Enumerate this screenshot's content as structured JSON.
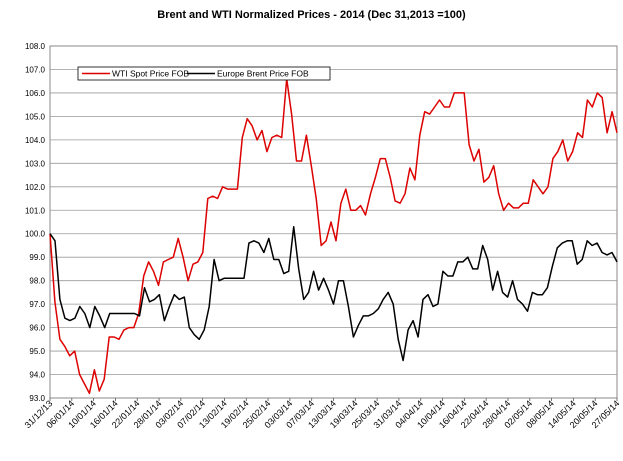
{
  "chart_data": {
    "type": "line",
    "title": "Brent and WTI Normalized Prices  - 2014 (Dec 31,2013 =100)",
    "xlabel": "",
    "ylabel": "",
    "ylim": [
      93,
      108
    ],
    "yticks": [
      "93.0",
      "94.0",
      "95.0",
      "96.0",
      "97.0",
      "98.0",
      "99.0",
      "100.0",
      "101.0",
      "102.0",
      "103.0",
      "104.0",
      "105.0",
      "106.0",
      "107.0",
      "108.0"
    ],
    "x_tick_labels": [
      "31/12/13",
      "06/01/14",
      "10/01/14",
      "16/01/14",
      "22/01/14",
      "28/01/14",
      "03/02/14",
      "07/02/14",
      "13/02/14",
      "19/02/14",
      "25/02/14",
      "03/03/14",
      "07/03/14",
      "13/03/14",
      "19/03/14",
      "25/03/14",
      "31/03/14",
      "04/04/14",
      "10/04/14",
      "16/04/14",
      "22/04/14",
      "28/04/14",
      "02/05/14",
      "08/05/14",
      "14/05/14",
      "20/05/14",
      "27/05/14"
    ],
    "grid": true,
    "legend_position": "top-left",
    "series": [
      {
        "name": "WTI Spot Price FOB",
        "color": "#dd0000",
        "values": [
          100.0,
          97.1,
          95.5,
          95.2,
          94.8,
          95.0,
          94.0,
          93.6,
          93.2,
          94.2,
          93.3,
          93.8,
          95.6,
          95.6,
          95.5,
          95.9,
          96.0,
          96.0,
          96.6,
          98.2,
          98.8,
          98.4,
          97.8,
          98.8,
          98.9,
          99.0,
          99.8,
          99.0,
          98.0,
          98.7,
          98.8,
          99.2,
          101.5,
          101.6,
          101.5,
          102.0,
          101.9,
          101.9,
          101.9,
          104.1,
          104.9,
          104.6,
          104.0,
          104.4,
          103.5,
          104.1,
          104.2,
          104.1,
          106.6,
          105.1,
          103.1,
          103.1,
          104.2,
          102.9,
          101.5,
          99.5,
          99.7,
          100.5,
          99.7,
          101.3,
          101.9,
          101.0,
          101.0,
          101.2,
          100.8,
          101.7,
          102.4,
          103.2,
          103.2,
          102.4,
          101.4,
          101.3,
          101.7,
          102.8,
          102.3,
          104.2,
          105.2,
          105.1,
          105.4,
          105.7,
          105.4,
          105.4,
          106.0,
          106.0,
          106.0,
          103.8,
          103.1,
          103.6,
          102.2,
          102.4,
          102.9,
          101.7,
          101.0,
          101.3,
          101.1,
          101.1,
          101.3,
          101.3,
          102.3,
          102.0,
          101.7,
          102.0,
          103.2,
          103.5,
          104.0,
          103.1,
          103.5,
          104.3,
          104.1,
          105.7,
          105.4,
          106.0,
          105.8,
          104.3,
          105.2,
          104.3
        ]
      },
      {
        "name": "Europe Brent Price FOB",
        "color": "#000000",
        "values": [
          100.0,
          99.7,
          97.2,
          96.4,
          96.3,
          96.4,
          96.9,
          96.6,
          96.0,
          96.9,
          96.5,
          96.0,
          96.6,
          96.6,
          96.6,
          96.6,
          96.6,
          96.6,
          96.5,
          97.7,
          97.1,
          97.2,
          97.4,
          96.3,
          96.9,
          97.4,
          97.2,
          97.3,
          96.0,
          95.7,
          95.5,
          95.9,
          96.9,
          98.9,
          98.0,
          98.1,
          98.1,
          98.1,
          98.1,
          98.1,
          99.6,
          99.7,
          99.6,
          99.2,
          99.8,
          98.9,
          98.9,
          98.3,
          98.4,
          100.3,
          98.5,
          97.2,
          97.5,
          98.4,
          97.6,
          98.1,
          97.6,
          97.0,
          98.0,
          98.0,
          96.9,
          95.6,
          96.1,
          96.5,
          96.5,
          96.6,
          96.8,
          97.2,
          97.5,
          97.0,
          95.5,
          94.6,
          95.9,
          96.3,
          95.6,
          97.2,
          97.4,
          96.9,
          97.0,
          98.4,
          98.2,
          98.2,
          98.8,
          98.8,
          99.0,
          98.5,
          98.5,
          99.5,
          98.9,
          97.6,
          98.4,
          97.5,
          97.3,
          98.0,
          97.2,
          97.0,
          96.7,
          97.5,
          97.4,
          97.4,
          97.7,
          98.6,
          99.4,
          99.6,
          99.7,
          99.7,
          98.7,
          98.9,
          99.7,
          99.5,
          99.6,
          99.2,
          99.1,
          99.2,
          98.8
        ]
      }
    ]
  }
}
